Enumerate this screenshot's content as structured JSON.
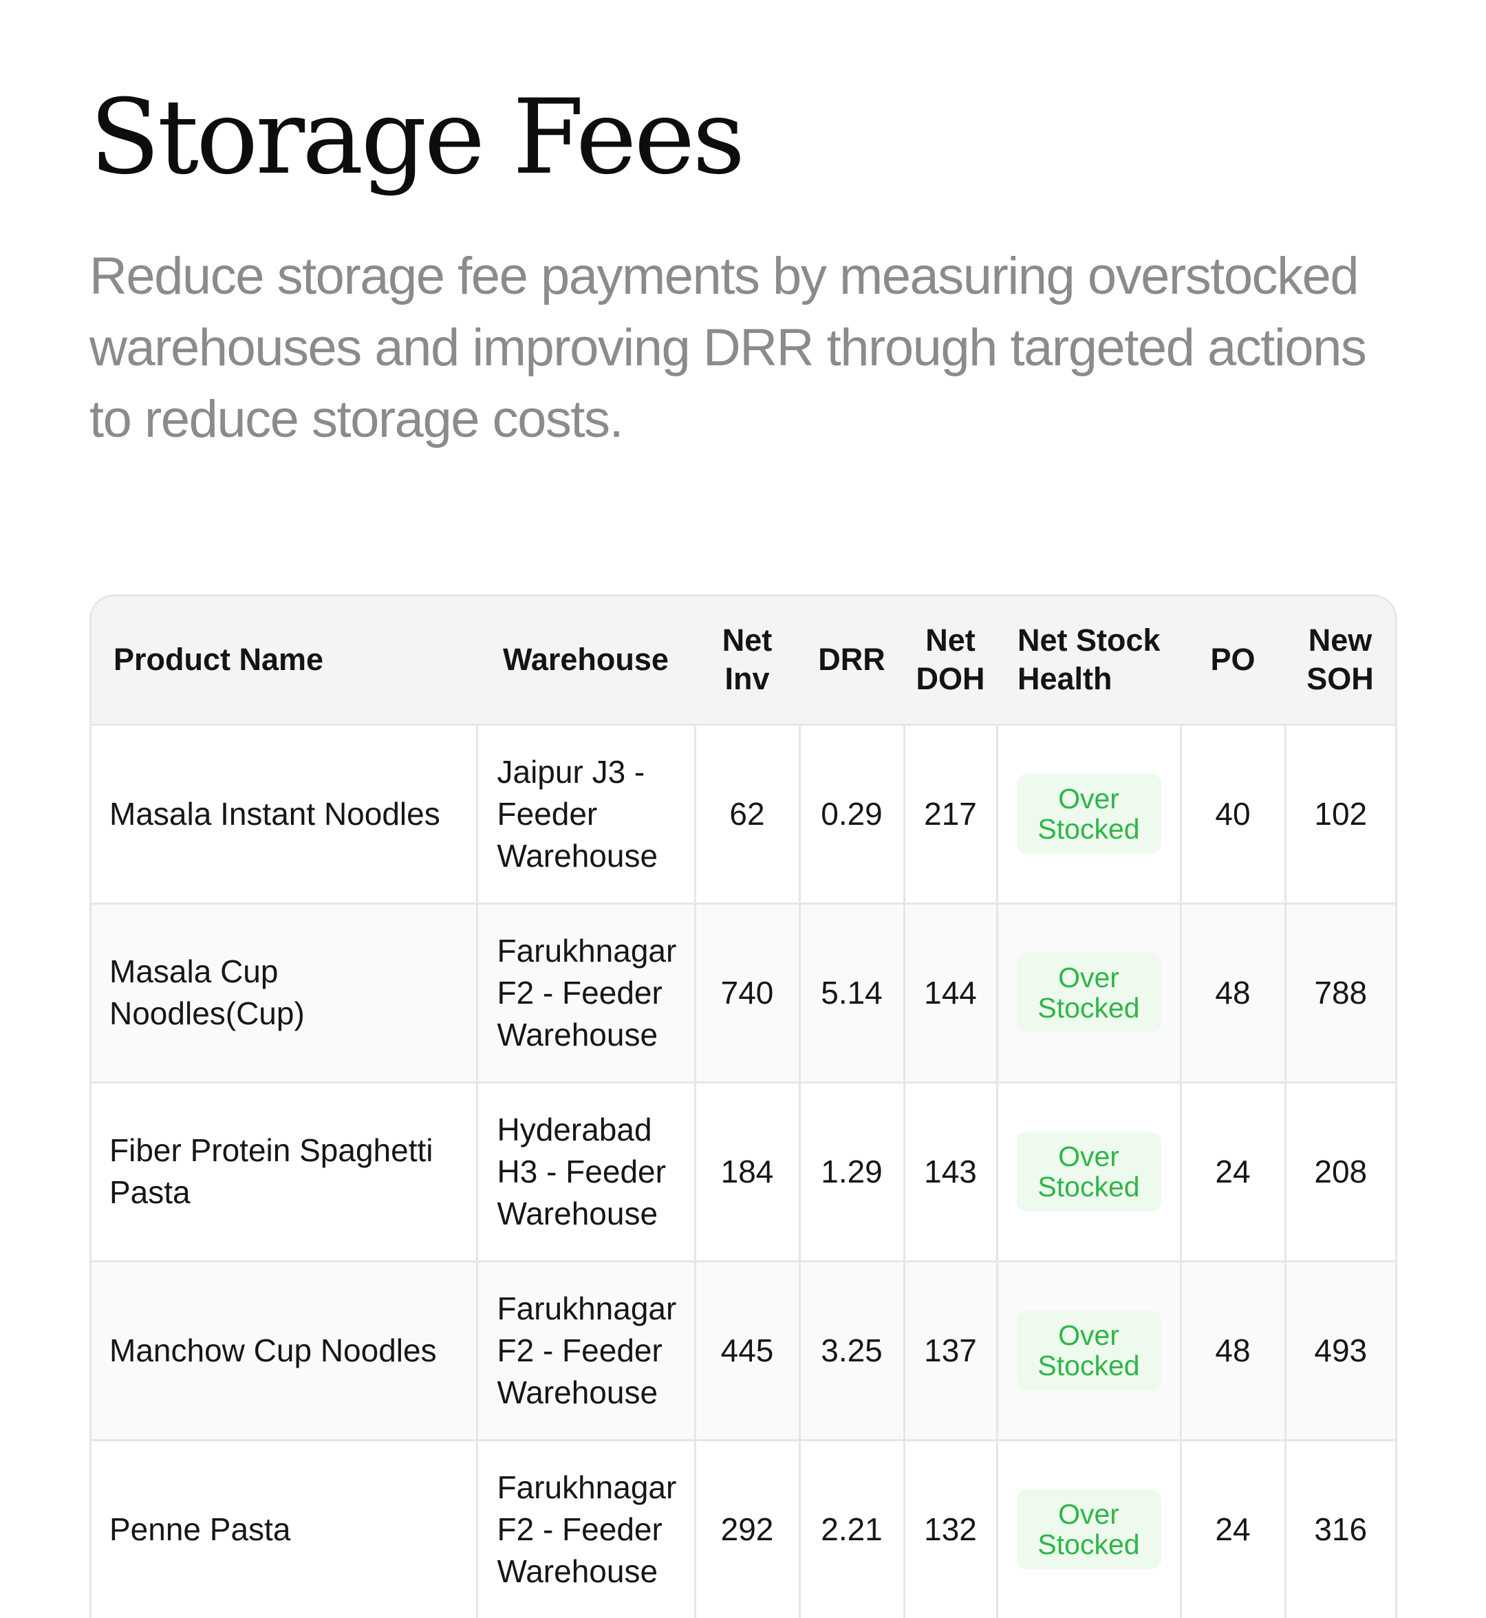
{
  "header": {
    "title": "Storage Fees",
    "subtitle": "Reduce storage fee payments by measuring overstocked warehouses and improving DRR through targeted actions to reduce storage costs."
  },
  "table": {
    "columns": [
      {
        "key": "product",
        "label": "Product Name"
      },
      {
        "key": "warehouse",
        "label": "Warehouse"
      },
      {
        "key": "net_inv",
        "label": "Net Inv"
      },
      {
        "key": "drr",
        "label": "DRR"
      },
      {
        "key": "net_doh",
        "label": "Net DOH"
      },
      {
        "key": "health",
        "label": "Net Stock Health"
      },
      {
        "key": "po",
        "label": "PO"
      },
      {
        "key": "new_soh",
        "label": "New SOH"
      }
    ],
    "rows": [
      {
        "product": "Masala Instant Noodles",
        "warehouse": "Jaipur J3 - Feeder Warehouse",
        "net_inv": "62",
        "drr": "0.29",
        "net_doh": "217",
        "health": "Over Stocked",
        "po": "40",
        "new_soh": "102"
      },
      {
        "product": "Masala Cup Noodles(Cup)",
        "warehouse": "Farukhnagar F2 - Feeder Warehouse",
        "net_inv": "740",
        "drr": "5.14",
        "net_doh": "144",
        "health": "Over Stocked",
        "po": "48",
        "new_soh": "788"
      },
      {
        "product": "Fiber Protein Spaghetti Pasta",
        "warehouse": "Hyderabad H3 - Feeder Warehouse",
        "net_inv": "184",
        "drr": "1.29",
        "net_doh": "143",
        "health": "Over Stocked",
        "po": "24",
        "new_soh": "208"
      },
      {
        "product": "Manchow Cup Noodles",
        "warehouse": "Farukhnagar F2 - Feeder Warehouse",
        "net_inv": "445",
        "drr": "3.25",
        "net_doh": "137",
        "health": "Over Stocked",
        "po": "48",
        "new_soh": "493"
      },
      {
        "product": "Penne Pasta",
        "warehouse": "Farukhnagar F2 - Feeder Warehouse",
        "net_inv": "292",
        "drr": "2.21",
        "net_doh": "132",
        "health": "Over Stocked",
        "po": "24",
        "new_soh": "316"
      }
    ]
  },
  "colors": {
    "badge_text": "#2eb648",
    "badge_background": "#eefaee",
    "subtitle": "#8b8b8b"
  }
}
